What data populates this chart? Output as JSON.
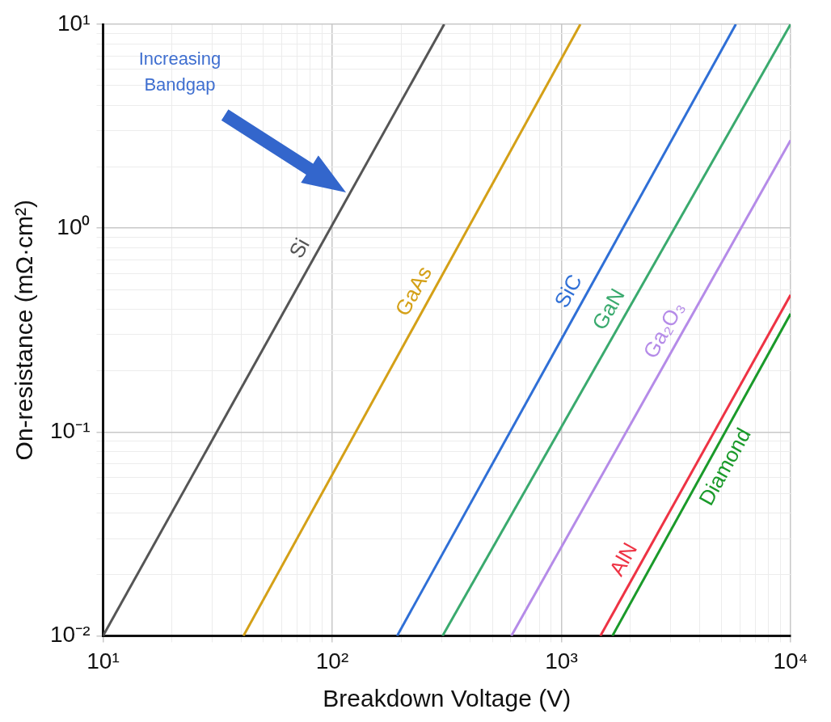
{
  "chart_data": {
    "type": "line",
    "xlabel": "Breakdown Voltage (V)",
    "ylabel": "On-resistance (mΩ·cm²)",
    "log": "xy",
    "grid": true,
    "legend": false,
    "marker": "none",
    "line_style": "solid",
    "xlim": [
      10,
      10000
    ],
    "ylim": [
      0.01,
      10
    ],
    "xticks": [
      {
        "value": 10,
        "label": "10¹"
      },
      {
        "value": 20,
        "label": null
      },
      {
        "value": 30,
        "label": null
      },
      {
        "value": 40,
        "label": null
      },
      {
        "value": 50,
        "label": null
      },
      {
        "value": 60,
        "label": null
      },
      {
        "value": 70,
        "label": null
      },
      {
        "value": 80,
        "label": null
      },
      {
        "value": 90,
        "label": null
      },
      {
        "value": 100,
        "label": "10²"
      },
      {
        "value": 200,
        "label": null
      },
      {
        "value": 300,
        "label": null
      },
      {
        "value": 400,
        "label": null
      },
      {
        "value": 500,
        "label": null
      },
      {
        "value": 600,
        "label": null
      },
      {
        "value": 700,
        "label": null
      },
      {
        "value": 800,
        "label": null
      },
      {
        "value": 900,
        "label": null
      },
      {
        "value": 1000,
        "label": "10³"
      },
      {
        "value": 2000,
        "label": null
      },
      {
        "value": 3000,
        "label": null
      },
      {
        "value": 4000,
        "label": null
      },
      {
        "value": 5000,
        "label": null
      },
      {
        "value": 6000,
        "label": null
      },
      {
        "value": 7000,
        "label": null
      },
      {
        "value": 8000,
        "label": null
      },
      {
        "value": 9000,
        "label": null
      },
      {
        "value": 10000,
        "label": "10⁴"
      }
    ],
    "yticks": [
      {
        "value": 0.01,
        "label": "10⁻²"
      },
      {
        "value": 0.02,
        "label": null
      },
      {
        "value": 0.03,
        "label": null
      },
      {
        "value": 0.04,
        "label": null
      },
      {
        "value": 0.05,
        "label": null
      },
      {
        "value": 0.06,
        "label": null
      },
      {
        "value": 0.07,
        "label": null
      },
      {
        "value": 0.08,
        "label": null
      },
      {
        "value": 0.09,
        "label": null
      },
      {
        "value": 0.1,
        "label": "10⁻¹"
      },
      {
        "value": 0.2,
        "label": null
      },
      {
        "value": 0.3,
        "label": null
      },
      {
        "value": 0.4,
        "label": null
      },
      {
        "value": 0.5,
        "label": null
      },
      {
        "value": 0.6,
        "label": null
      },
      {
        "value": 0.7,
        "label": null
      },
      {
        "value": 0.8,
        "label": null
      },
      {
        "value": 0.9,
        "label": null
      },
      {
        "value": 1,
        "label": "10⁰"
      },
      {
        "value": 2,
        "label": null
      },
      {
        "value": 3,
        "label": null
      },
      {
        "value": 4,
        "label": null
      },
      {
        "value": 5,
        "label": null
      },
      {
        "value": 6,
        "label": null
      },
      {
        "value": 7,
        "label": null
      },
      {
        "value": 8,
        "label": null
      },
      {
        "value": 9,
        "label": null
      },
      {
        "value": 10,
        "label": "10¹"
      }
    ],
    "annotations": [
      "Increasing Bandgap"
    ],
    "series": [
      {
        "name": "Si",
        "color": "#555555",
        "x": [
          10,
          308
        ],
        "values": [
          0.01,
          10
        ]
      },
      {
        "name": "GaAs",
        "color": "#d4a017",
        "x": [
          41,
          1210
        ],
        "values": [
          0.01,
          10
        ]
      },
      {
        "name": "SiC",
        "color": "#2f6fd6",
        "x": [
          192,
          5770
        ],
        "values": [
          0.01,
          10
        ]
      },
      {
        "name": "GaN",
        "color": "#3aaa6e",
        "x": [
          303,
          10000
        ],
        "values": [
          0.01,
          10
        ]
      },
      {
        "name": "Ga₂O₃",
        "color": "#b58be8",
        "x": [
          605,
          10000
        ],
        "values": [
          0.01,
          2.7
        ]
      },
      {
        "name": "AlN",
        "color": "#ee3344",
        "x": [
          1480,
          10000
        ],
        "values": [
          0.01,
          0.47
        ]
      },
      {
        "name": "Diamond",
        "color": "#1a9a2a",
        "x": [
          1670,
          10000
        ],
        "values": [
          0.01,
          0.38
        ]
      }
    ]
  }
}
